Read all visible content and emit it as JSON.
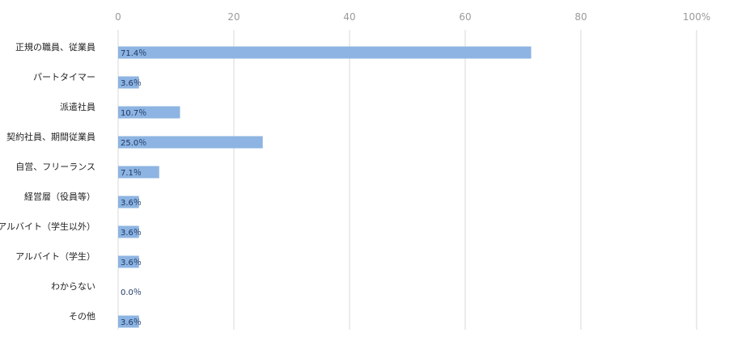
{
  "chart_data": {
    "type": "bar",
    "orientation": "horizontal",
    "title": "",
    "xlabel": "",
    "ylabel": "",
    "xlim": [
      0,
      100
    ],
    "x_ticks": [
      0,
      20,
      40,
      60,
      80,
      100
    ],
    "x_tick_labels": [
      "0",
      "20",
      "40",
      "60",
      "80",
      "100%"
    ],
    "grid": true,
    "legend": "none",
    "bar_color": "#8db4e2",
    "categories": [
      "正規の職員、従業員",
      "パートタイマー",
      "派遣社員",
      "契約社員、期間従業員",
      "自営、フリーランス",
      "経営層（役員等）",
      "アルバイト（学生以外）",
      "アルバイト（学生）",
      "わからない",
      "その他"
    ],
    "values": [
      71.4,
      3.6,
      10.7,
      25.0,
      7.1,
      3.6,
      3.6,
      3.6,
      0.0,
      3.6
    ],
    "value_labels": [
      "71.4％",
      "3.6％",
      "10.7％",
      "25.0％",
      "7.1％",
      "3.6％",
      "3.6％",
      "3.6％",
      "0.0％",
      "3.6％"
    ]
  }
}
